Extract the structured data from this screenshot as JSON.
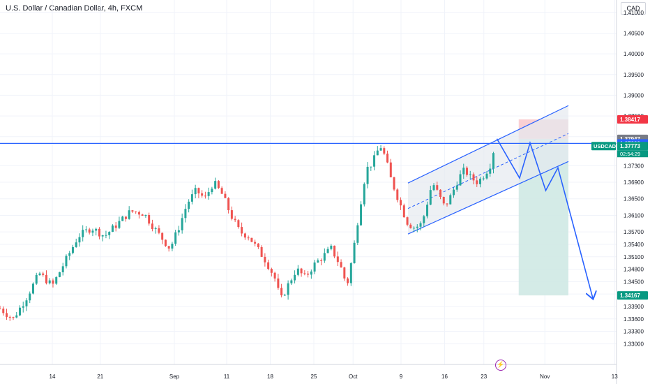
{
  "title": "U.S. Dollar / Canadian Dollar, 4h, FXCM",
  "currency": "CAD",
  "colors": {
    "bull": "#26a69a",
    "bear": "#ef5350",
    "drawing": "#2962ff",
    "stop_zone": "#f8c8cd",
    "target_zone": "#cfe9e4",
    "channel_fill": "#e6e9f0",
    "grid": "#f0f3fa",
    "axis_text": "#131722"
  },
  "chart_data": {
    "type": "candlestick",
    "symbol": "USDCAD",
    "timeframe": "4h",
    "y_axis": {
      "side": "right",
      "min": 1.325,
      "max": 1.413,
      "ticks": [
        "1.41000",
        "1.40500",
        "1.40000",
        "1.39500",
        "1.39000",
        "1.38500",
        "1.38000",
        "1.37300",
        "1.36900",
        "1.36500",
        "1.36100",
        "1.35700",
        "1.35400",
        "1.35100",
        "1.34800",
        "1.34500",
        "1.34200",
        "1.33900",
        "1.33600",
        "1.33300",
        "1.33000"
      ]
    },
    "x_axis": {
      "ticks": [
        {
          "label": "14",
          "t": 0.06
        },
        {
          "label": "21",
          "t": 0.115
        },
        {
          "label": "Sep",
          "t": 0.2
        },
        {
          "label": "11",
          "t": 0.26
        },
        {
          "label": "18",
          "t": 0.31
        },
        {
          "label": "25",
          "t": 0.36
        },
        {
          "label": "Oct",
          "t": 0.405
        },
        {
          "label": "9",
          "t": 0.46
        },
        {
          "label": "16",
          "t": 0.51
        },
        {
          "label": "23",
          "t": 0.555
        },
        {
          "label": "Nov",
          "t": 0.625
        },
        {
          "label": "13",
          "t": 0.705
        }
      ]
    },
    "price_path": [
      [
        0.0,
        1.3385
      ],
      [
        0.015,
        1.336
      ],
      [
        0.03,
        1.341
      ],
      [
        0.045,
        1.347
      ],
      [
        0.06,
        1.344
      ],
      [
        0.075,
        1.35
      ],
      [
        0.09,
        1.356
      ],
      [
        0.105,
        1.358
      ],
      [
        0.12,
        1.356
      ],
      [
        0.135,
        1.359
      ],
      [
        0.15,
        1.362
      ],
      [
        0.165,
        1.3615
      ],
      [
        0.18,
        1.357
      ],
      [
        0.195,
        1.353
      ],
      [
        0.205,
        1.358
      ],
      [
        0.215,
        1.364
      ],
      [
        0.225,
        1.367
      ],
      [
        0.235,
        1.365
      ],
      [
        0.245,
        1.369
      ],
      [
        0.255,
        1.366
      ],
      [
        0.265,
        1.361
      ],
      [
        0.275,
        1.357
      ],
      [
        0.285,
        1.356
      ],
      [
        0.295,
        1.353
      ],
      [
        0.305,
        1.35
      ],
      [
        0.315,
        1.346
      ],
      [
        0.322,
        1.3405
      ],
      [
        0.33,
        1.344
      ],
      [
        0.34,
        1.348
      ],
      [
        0.35,
        1.346
      ],
      [
        0.36,
        1.349
      ],
      [
        0.37,
        1.351
      ],
      [
        0.38,
        1.353
      ],
      [
        0.39,
        1.349
      ],
      [
        0.398,
        1.344
      ],
      [
        0.405,
        1.352
      ],
      [
        0.412,
        1.362
      ],
      [
        0.42,
        1.372
      ],
      [
        0.428,
        1.374
      ],
      [
        0.436,
        1.378
      ],
      [
        0.442,
        1.375
      ],
      [
        0.448,
        1.37
      ],
      [
        0.455,
        1.366
      ],
      [
        0.462,
        1.362
      ],
      [
        0.468,
        1.359
      ],
      [
        0.476,
        1.358
      ],
      [
        0.484,
        1.359
      ],
      [
        0.49,
        1.364
      ],
      [
        0.496,
        1.369
      ],
      [
        0.503,
        1.366
      ],
      [
        0.51,
        1.363
      ],
      [
        0.518,
        1.366
      ],
      [
        0.526,
        1.37
      ],
      [
        0.533,
        1.372
      ],
      [
        0.54,
        1.37
      ],
      [
        0.548,
        1.369
      ],
      [
        0.556,
        1.371
      ],
      [
        0.562,
        1.373
      ],
      [
        0.566,
        1.3765
      ]
    ],
    "horizontal_line": 1.37838,
    "price_labels": [
      {
        "label": "1.38417",
        "value": 1.38417,
        "color": "#f23645"
      },
      {
        "label": "1.37947",
        "value": 1.37947,
        "color": "#787b86"
      },
      {
        "label": "1.37838",
        "value": 1.37838,
        "color": "#2962ff"
      },
      {
        "label": "1.37773",
        "value": 1.37773,
        "color": "#089981",
        "symbol": "USDCAD",
        "countdown": "02:54:29"
      },
      {
        "label": "1.34167",
        "value": 1.34167,
        "color": "#089981"
      }
    ],
    "position": {
      "type": "short",
      "entry": 1.37947,
      "stop": 1.38417,
      "target": 1.34167,
      "t_start": 0.595,
      "t_end": 0.652
    },
    "channel": {
      "lower": [
        [
          0.468,
          1.3565
        ],
        [
          0.652,
          1.374
        ]
      ],
      "upper": [
        [
          0.468,
          1.3688
        ],
        [
          0.652,
          1.3875
        ]
      ]
    },
    "projection_path": [
      [
        0.57,
        1.3795
      ],
      [
        0.596,
        1.37
      ],
      [
        0.608,
        1.3785
      ],
      [
        0.626,
        1.367
      ],
      [
        0.64,
        1.3725
      ],
      [
        0.68,
        1.341
      ]
    ]
  }
}
